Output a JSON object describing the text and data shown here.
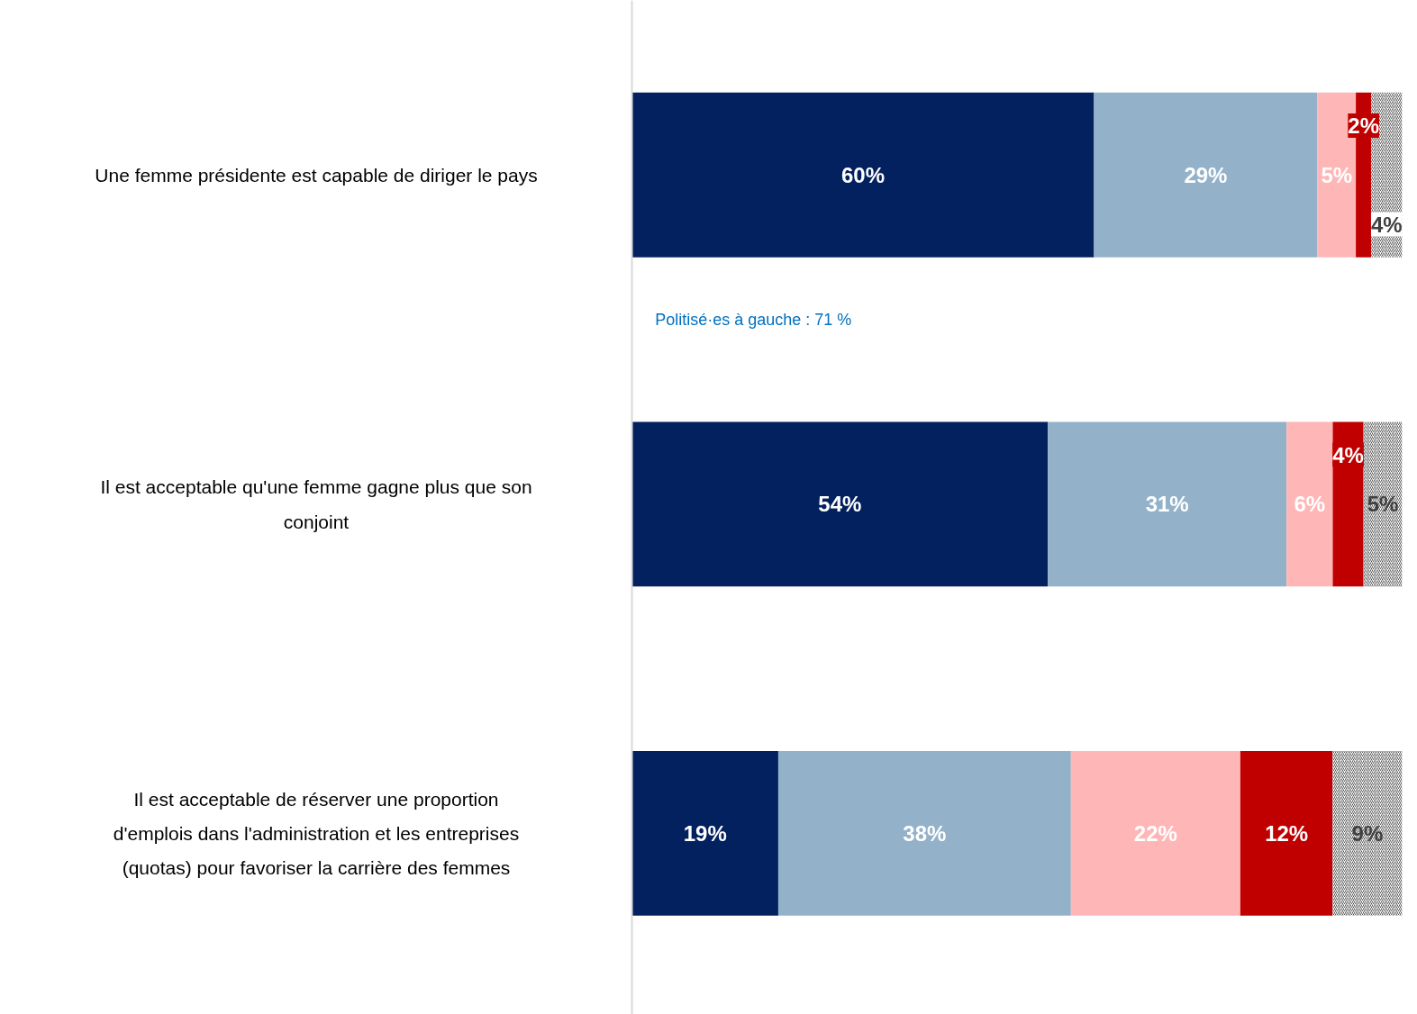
{
  "chart_data": {
    "type": "bar",
    "orientation": "horizontal",
    "stacked": true,
    "grid": false,
    "categories": [
      "Une femme présidente est capable de diriger le pays",
      "Il est acceptable qu'une femme gagne plus que son conjoint",
      "Il est acceptable de réserver une proportion d'emplois dans l'administration et les entreprises (quotas) pour favoriser la carrière des femmes"
    ],
    "series": [
      {
        "color": "#03215e",
        "values": [
          60,
          54,
          19
        ],
        "value_labels": [
          "60%",
          "54%",
          "19%"
        ]
      },
      {
        "color": "#93b2c9",
        "values": [
          29,
          31,
          38
        ],
        "value_labels": [
          "29%",
          "31%",
          "38%"
        ]
      },
      {
        "color": "#ffb6b6",
        "values": [
          5,
          6,
          22
        ],
        "value_labels": [
          "5%",
          "6%",
          "22%"
        ]
      },
      {
        "color": "#c00000",
        "values": [
          2,
          4,
          12
        ],
        "value_labels": [
          "2%",
          "4%",
          "12%"
        ]
      },
      {
        "color": "#595959",
        "values": [
          4,
          5,
          9
        ],
        "value_labels": [
          "4%",
          "5%",
          "9%"
        ]
      }
    ],
    "annotations": [
      "Politisé·es à gauche : 71 %"
    ]
  }
}
